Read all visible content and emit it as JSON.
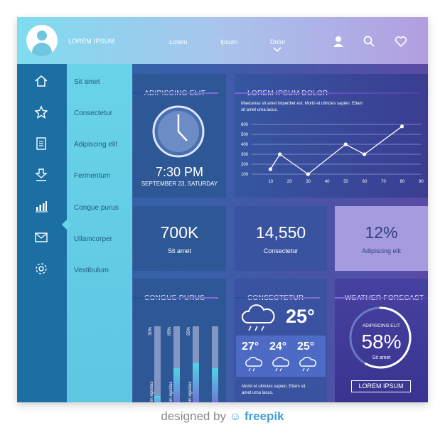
{
  "topbar": {
    "brand": "LOREM IPSUM",
    "nav": [
      "Lorem",
      "Ipsum",
      "Dolor"
    ],
    "icons": [
      "user-icon",
      "search-icon",
      "heart-icon"
    ]
  },
  "rail": {
    "icons": [
      "home-icon",
      "star-icon",
      "document-icon",
      "download-icon",
      "chart-icon",
      "mail-icon",
      "gear-icon"
    ]
  },
  "submenu": {
    "items": [
      "Sit amet",
      "Consectetur",
      "Adipiscing elit",
      "Fermentum",
      "Congue purus",
      "Ullamcorper",
      "Vestibulum"
    ],
    "active_index": 4
  },
  "clock_panel": {
    "title": "ADIPISCING ELIT",
    "time": "7:30 PM",
    "date": "SEPTEMBER 23, SATURDAY"
  },
  "line_panel": {
    "title": "LOREM IPSUM DOLOR",
    "text": [
      "Maecenas sit amet imperdiet est. Morbi et ultricies sapien. Etiam",
      "sit amet urna lacus."
    ]
  },
  "chart_data": {
    "type": "line",
    "x": [
      10,
      15,
      30,
      50,
      60,
      80
    ],
    "y": [
      150,
      300,
      100,
      400,
      300,
      580
    ],
    "xticks": [
      "10",
      "20",
      "30",
      "40",
      "50",
      "60",
      "70",
      "80",
      "90"
    ],
    "yticks": [
      "100",
      "200",
      "300",
      "400",
      "500",
      "600"
    ],
    "xlim": [
      0,
      90
    ],
    "ylim": [
      100,
      600
    ],
    "title": "",
    "xlabel": "",
    "ylabel": "",
    "grid": true
  },
  "stats": [
    {
      "value": "700K",
      "label": "Sit amet"
    },
    {
      "value": "14,550",
      "label": "Consectetur"
    },
    {
      "value": "12%",
      "label": "Adipiscing elit"
    }
  ],
  "bars_panel": {
    "title": "CONGUE PURUS",
    "bars": [
      {
        "percent_label": "30%",
        "label": "Enim egestas",
        "fill": 0.3
      },
      {
        "percent_label": "85%",
        "label": "Enim egestas",
        "fill": 0.85
      },
      {
        "percent_label": "95%",
        "label": "Enim egestas",
        "fill": 0.95
      },
      {
        "percent_label": "",
        "label": "",
        "fill": 0.85
      }
    ]
  },
  "temp_panel": {
    "title": "CONSECTETUR",
    "current": "25°",
    "forecast": [
      "27°",
      "24°",
      "25°"
    ],
    "text": [
      "Morbi et ultricies sapien. Etiam sit",
      "amet urna lacus."
    ]
  },
  "weather_panel": {
    "title": "WEATHER FORECAST",
    "ring_label": "ADIPISCING ELIT",
    "percent": "58%",
    "percent_value": 0.58,
    "sub": "Sit amet",
    "button": "LOREM IPSUM"
  },
  "footer": {
    "prefix": "designed by",
    "brand": "freepik"
  },
  "colors": {
    "accent": "#69d3e8",
    "panel_dark": "#2d4f92",
    "panel_light": "#a79be0"
  }
}
